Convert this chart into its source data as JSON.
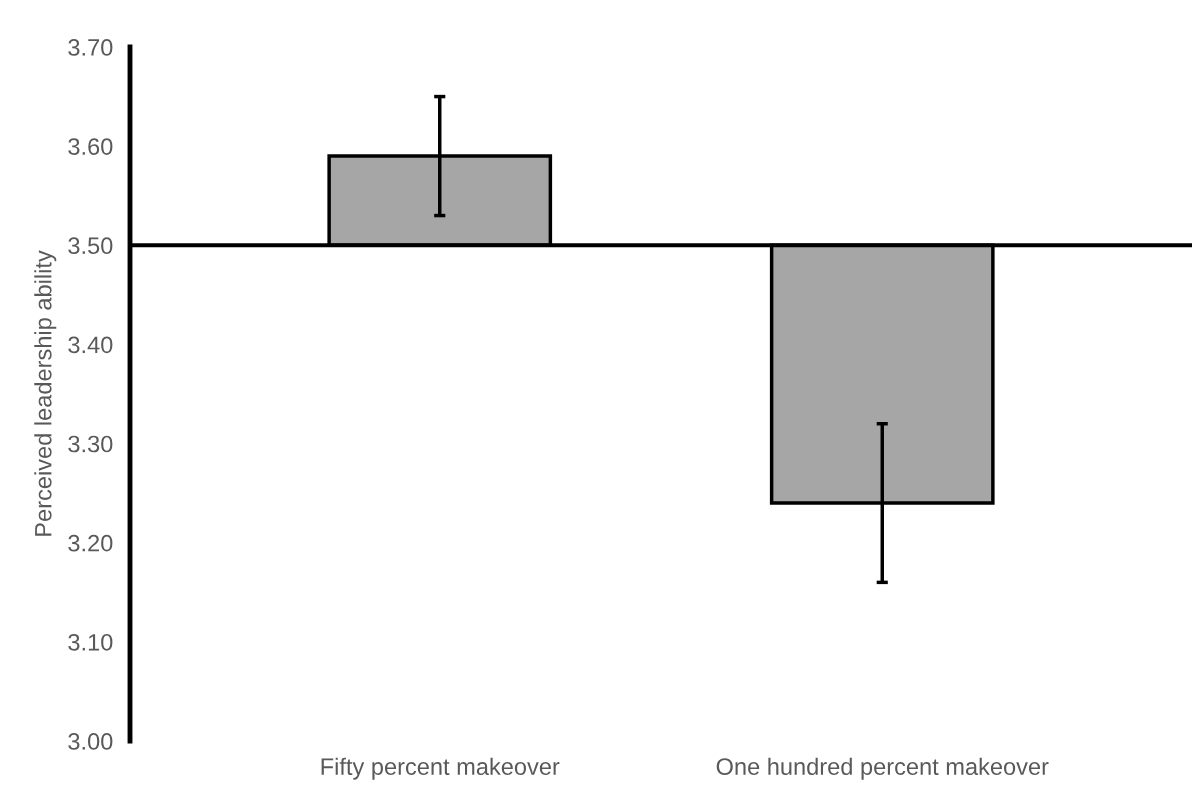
{
  "chart_data": {
    "type": "bar",
    "ylabel": "Perceived leadership ability",
    "categories": [
      "Fifty percent makeover",
      "One hundred percent makeover"
    ],
    "base": [
      3.5,
      3.5
    ],
    "values": [
      0.09,
      -0.26
    ],
    "errors": [
      0.06,
      0.08
    ],
    "color": "#a6a6a6",
    "ylim": [
      3.0,
      3.7
    ],
    "yticks": [
      {
        "value": 3.0,
        "label": "3.00"
      },
      {
        "value": 3.1,
        "label": "3.10"
      },
      {
        "value": 3.2,
        "label": "3.20"
      },
      {
        "value": 3.3,
        "label": "3.30"
      },
      {
        "value": 3.4,
        "label": "3.40"
      },
      {
        "value": 3.5,
        "label": "3.50"
      },
      {
        "value": 3.6,
        "label": "3.60"
      },
      {
        "value": 3.7,
        "label": "3.70"
      }
    ],
    "ref_lines": [
      {
        "axis": "y",
        "value": 3.5,
        "color": "#000000"
      }
    ],
    "grid": false
  }
}
